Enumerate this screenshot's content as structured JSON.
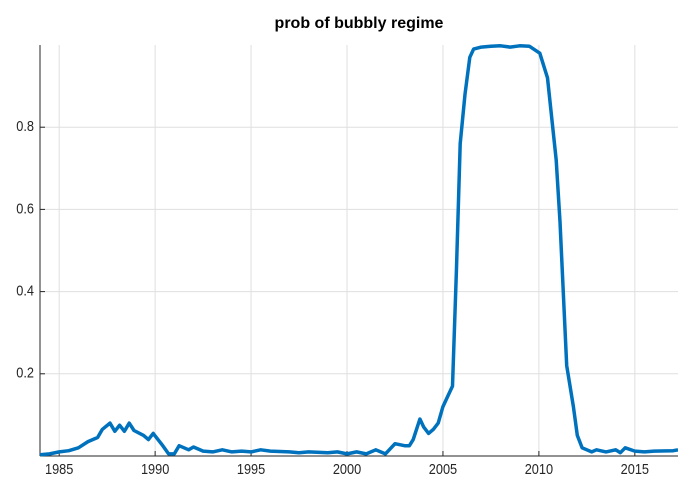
{
  "chart_data": {
    "type": "line",
    "title": "prob of bubbly regime",
    "x": [
      1984.0,
      1984.5,
      1985,
      1985.5,
      1986,
      1986.5,
      1987,
      1987.25,
      1987.65,
      1987.9,
      1988.15,
      1988.4,
      1988.65,
      1988.9,
      1989.4,
      1989.65,
      1989.9,
      1990.4,
      1990.7,
      1991,
      1991.25,
      1991.75,
      1992,
      1992.5,
      1993,
      1993.5,
      1994,
      1994.5,
      1995,
      1995.5,
      1996,
      1997,
      1997.5,
      1998,
      1999,
      1999.5,
      2000,
      2000.5,
      2001,
      2001.5,
      2002,
      2002.5,
      2003,
      2003.25,
      2003.45,
      2003.8,
      2004,
      2004.25,
      2004.5,
      2004.75,
      2005,
      2005.25,
      2005.5,
      2005.7,
      2005.9,
      2006.15,
      2006.4,
      2006.6,
      2007,
      2007.5,
      2008,
      2008.5,
      2009,
      2009.5,
      2010.05,
      2010.45,
      2010.9,
      2011.1,
      2011.45,
      2011.8,
      2012,
      2012.25,
      2012.75,
      2013,
      2013.5,
      2014,
      2014.25,
      2014.5,
      2015,
      2015.5,
      2016,
      2017,
      2017.25
    ],
    "values": [
      0.003,
      0.005,
      0.01,
      0.013,
      0.02,
      0.035,
      0.045,
      0.065,
      0.08,
      0.06,
      0.075,
      0.06,
      0.08,
      0.062,
      0.05,
      0.04,
      0.055,
      0.025,
      0.005,
      0.005,
      0.025,
      0.015,
      0.022,
      0.012,
      0.01,
      0.015,
      0.01,
      0.012,
      0.01,
      0.015,
      0.012,
      0.01,
      0.008,
      0.01,
      0.008,
      0.01,
      0.005,
      0.01,
      0.005,
      0.015,
      0.005,
      0.03,
      0.025,
      0.025,
      0.04,
      0.09,
      0.07,
      0.055,
      0.065,
      0.08,
      0.12,
      0.145,
      0.17,
      0.45,
      0.76,
      0.88,
      0.97,
      0.99,
      0.995,
      0.997,
      0.998,
      0.995,
      0.998,
      0.997,
      0.98,
      0.92,
      0.72,
      0.57,
      0.22,
      0.12,
      0.05,
      0.02,
      0.01,
      0.015,
      0.01,
      0.015,
      0.008,
      0.02,
      0.012,
      0.01,
      0.012,
      0.013,
      0.015
    ],
    "color": "#0072bd",
    "xlim": [
      1984,
      2017.25
    ],
    "ylim": [
      0,
      1
    ],
    "xticks": [
      1985,
      1990,
      1995,
      2000,
      2005,
      2010,
      2015
    ],
    "yticks": [
      0.2,
      0.4,
      0.6,
      0.8
    ],
    "grid": true
  }
}
